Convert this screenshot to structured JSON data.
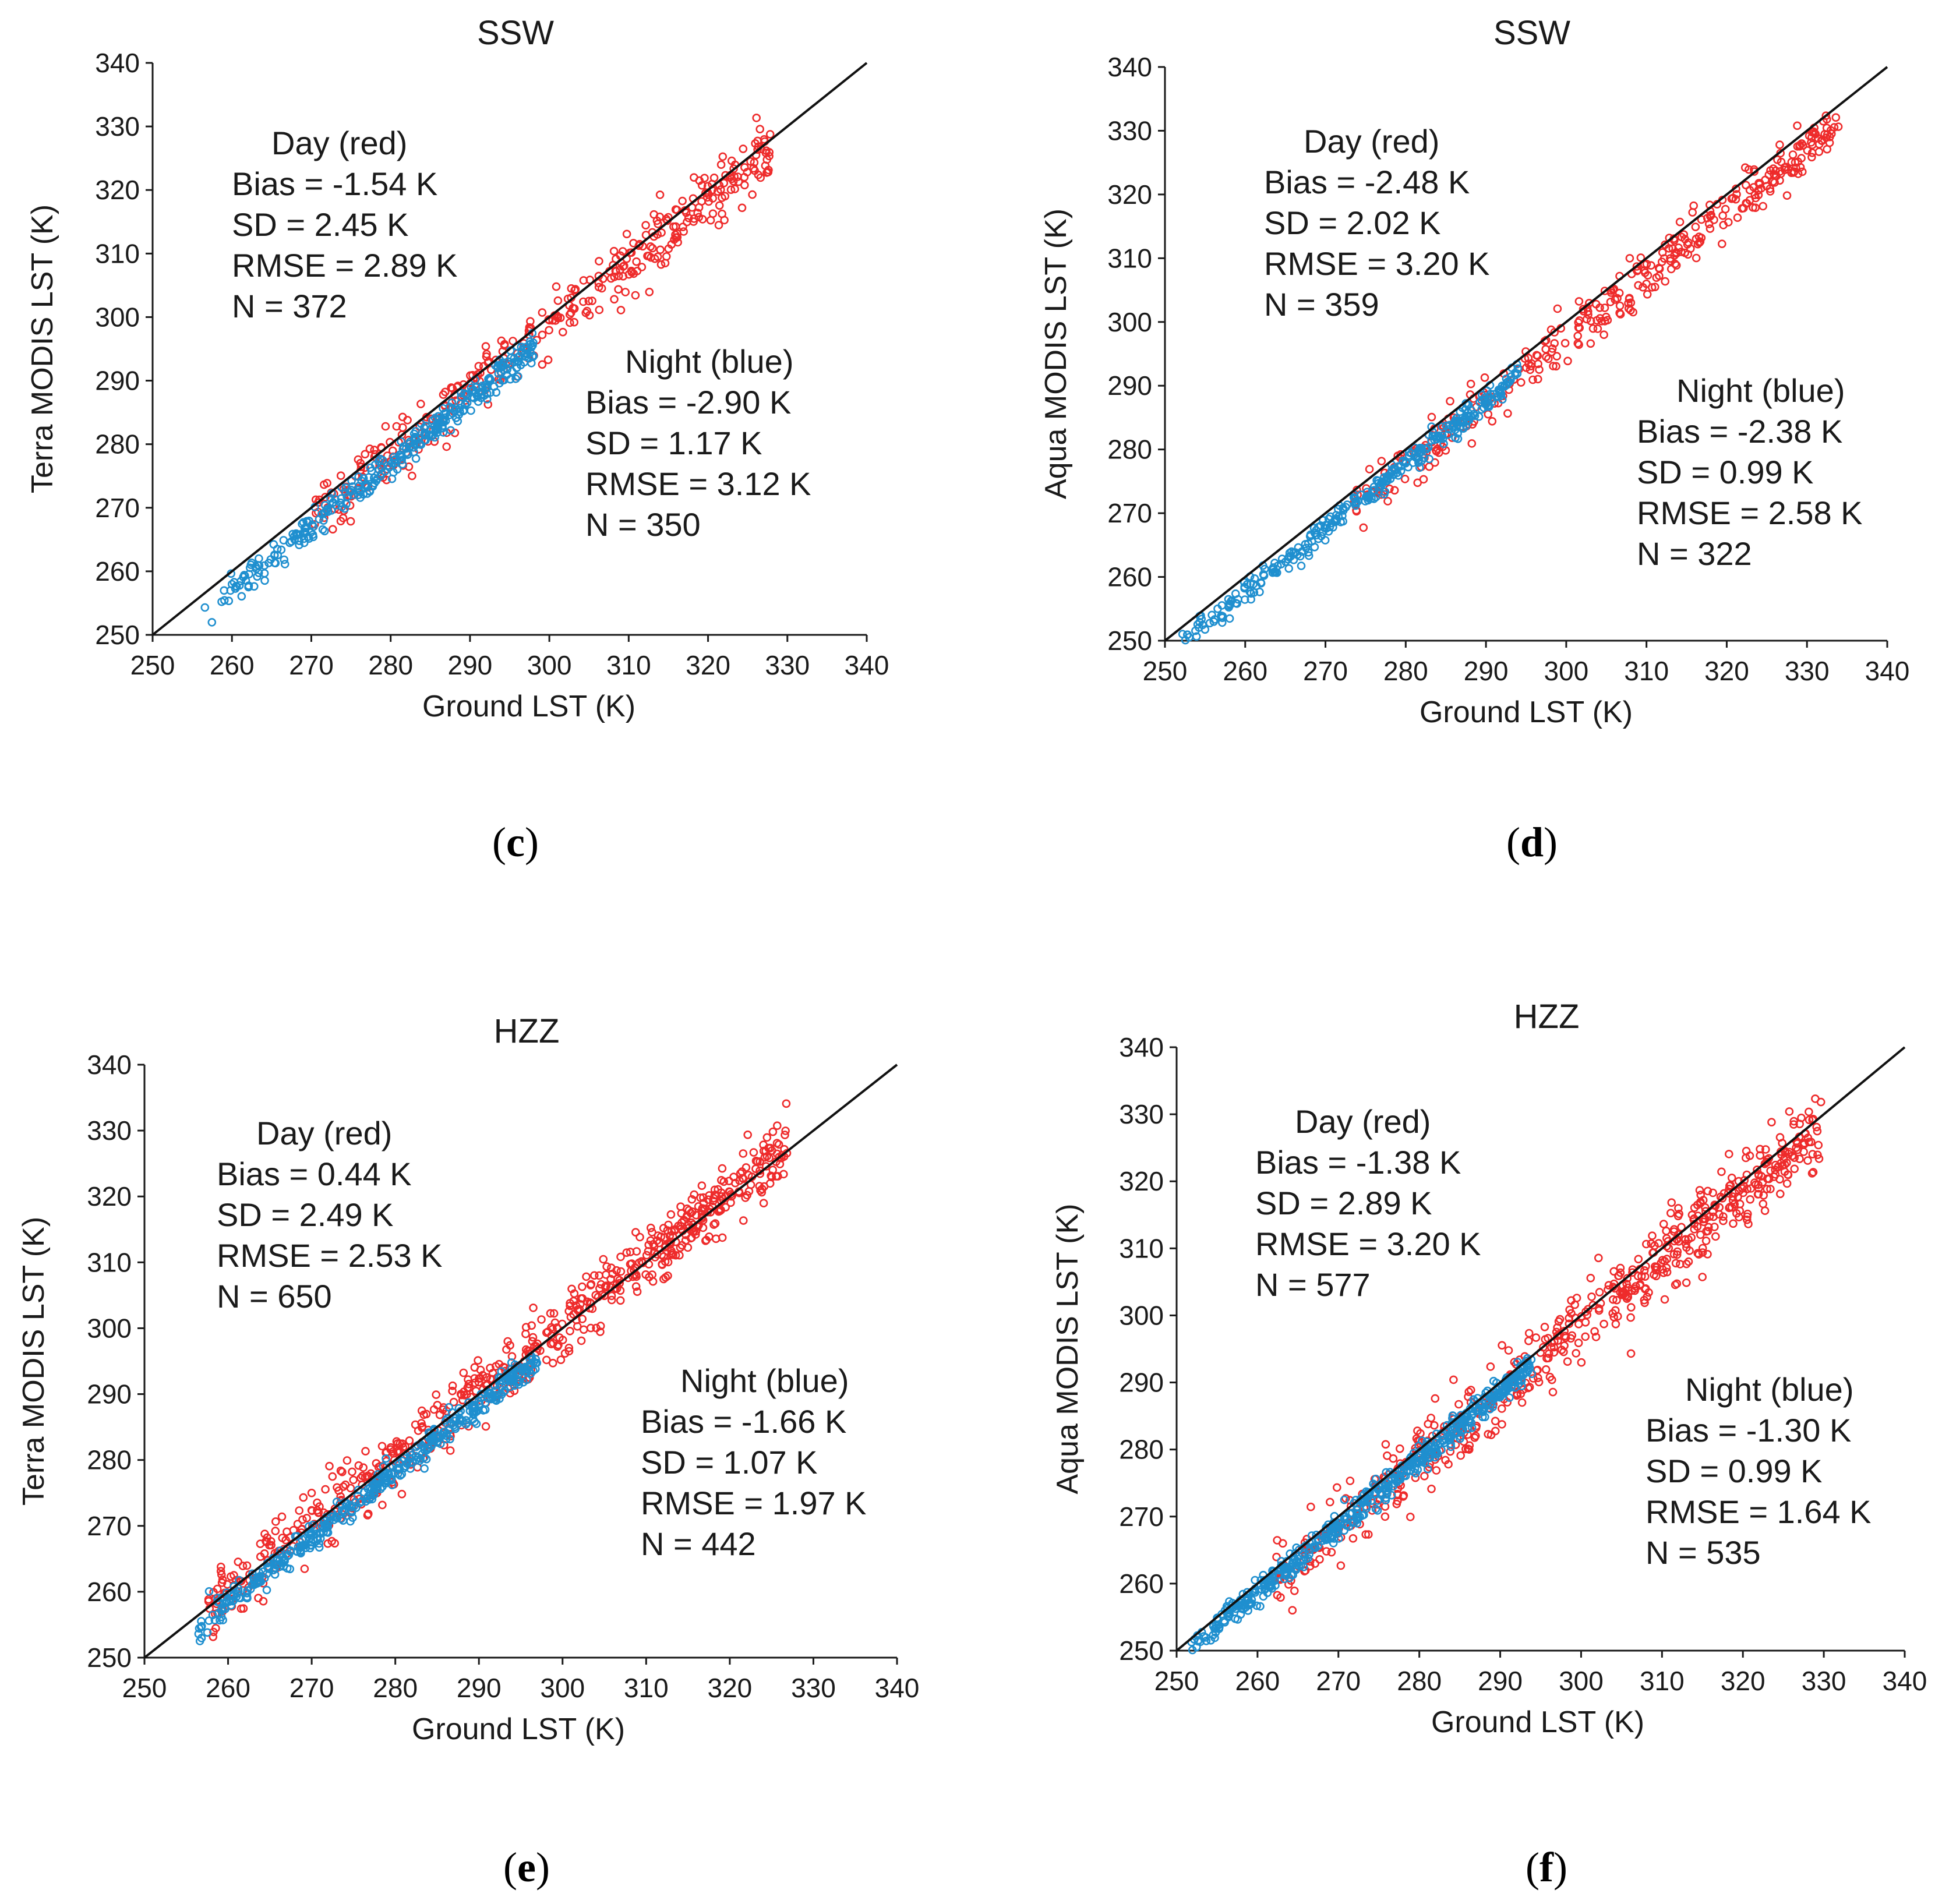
{
  "figure": {
    "colors": {
      "day": "#ee2b2b",
      "night": "#1f8fcf",
      "axis": "#1a1a1a",
      "line": "#111111"
    }
  },
  "chart_data": [
    {
      "type": "scatter",
      "panel": "c",
      "caption": "c",
      "title": "SSW",
      "xlabel": "Ground LST (K)",
      "ylabel": "Terra MODIS LST (K)",
      "xlim": [
        250,
        340
      ],
      "ylim": [
        250,
        340
      ],
      "ticks": [
        "250",
        "260",
        "270",
        "280",
        "290",
        "300",
        "310",
        "320",
        "330",
        "340"
      ],
      "reference_line": "1:1",
      "day": {
        "header": "Day (red)",
        "lines": [
          "Bias = -1.54 K",
          "SD = 2.45 K",
          "RMSE = 2.89 K",
          "N = 372"
        ],
        "bias": -1.54,
        "sd": 2.45,
        "n": 372,
        "xrange": [
          270,
          328
        ]
      },
      "night": {
        "header": "Night (blue)",
        "lines": [
          "Bias = -2.90 K",
          "SD = 1.17 K",
          "RMSE = 3.12 K",
          "N = 350"
        ],
        "bias": -2.9,
        "sd": 1.17,
        "n": 350,
        "xrange": [
          256,
          298
        ]
      }
    },
    {
      "type": "scatter",
      "panel": "d",
      "caption": "d",
      "title": "SSW",
      "xlabel": "Ground LST (K)",
      "ylabel": "Aqua MODIS LST (K)",
      "xlim": [
        250,
        340
      ],
      "ylim": [
        250,
        340
      ],
      "ticks": [
        "250",
        "260",
        "270",
        "280",
        "290",
        "300",
        "310",
        "320",
        "330",
        "340"
      ],
      "reference_line": "1:1",
      "day": {
        "header": "Day (red)",
        "lines": [
          "Bias = -2.48 K",
          "SD = 2.02 K",
          "RMSE = 3.20 K",
          "N = 359"
        ],
        "bias": -2.48,
        "sd": 2.02,
        "n": 359,
        "xrange": [
          273,
          334
        ]
      },
      "night": {
        "header": "Night (blue)",
        "lines": [
          "Bias = -2.38 K",
          "SD = 0.99 K",
          "RMSE = 2.58 K",
          "N = 322"
        ],
        "bias": -2.38,
        "sd": 0.99,
        "n": 322,
        "xrange": [
          252,
          294
        ]
      }
    },
    {
      "type": "scatter",
      "panel": "e",
      "caption": "e",
      "title": "HZZ",
      "xlabel": "Ground LST (K)",
      "ylabel": "Terra MODIS LST (K)",
      "xlim": [
        250,
        340
      ],
      "ylim": [
        250,
        340
      ],
      "ticks": [
        "250",
        "260",
        "270",
        "280",
        "290",
        "300",
        "310",
        "320",
        "330",
        "340"
      ],
      "reference_line": "1:1",
      "day": {
        "header": "Day (red)",
        "lines": [
          "Bias = 0.44 K",
          "SD = 2.49 K",
          "RMSE = 2.53 K",
          "N = 650"
        ],
        "bias": 0.44,
        "sd": 2.49,
        "n": 650,
        "xrange": [
          257,
          327
        ]
      },
      "night": {
        "header": "Night (blue)",
        "lines": [
          "Bias = -1.66 K",
          "SD = 1.07 K",
          "RMSE = 1.97 K",
          "N = 442"
        ],
        "bias": -1.66,
        "sd": 1.07,
        "n": 442,
        "xrange": [
          256,
          297
        ]
      }
    },
    {
      "type": "scatter",
      "panel": "f",
      "caption": "f",
      "title": "HZZ",
      "xlabel": "Ground LST (K)",
      "ylabel": "Aqua MODIS LST (K)",
      "xlim": [
        250,
        340
      ],
      "ylim": [
        250,
        340
      ],
      "ticks": [
        "250",
        "260",
        "270",
        "280",
        "290",
        "300",
        "310",
        "320",
        "330",
        "340"
      ],
      "reference_line": "1:1",
      "day": {
        "header": "Day (red)",
        "lines": [
          "Bias = -1.38 K",
          "SD = 2.89 K",
          "RMSE = 3.20 K",
          "N = 577"
        ],
        "bias": -1.38,
        "sd": 2.89,
        "n": 577,
        "xrange": [
          262,
          330
        ]
      },
      "night": {
        "header": "Night (blue)",
        "lines": [
          "Bias = -1.30 K",
          "SD = 0.99 K",
          "RMSE = 1.64 K",
          "N = 535"
        ],
        "bias": -1.3,
        "sd": 0.99,
        "n": 535,
        "xrange": [
          251,
          294
        ]
      }
    }
  ]
}
